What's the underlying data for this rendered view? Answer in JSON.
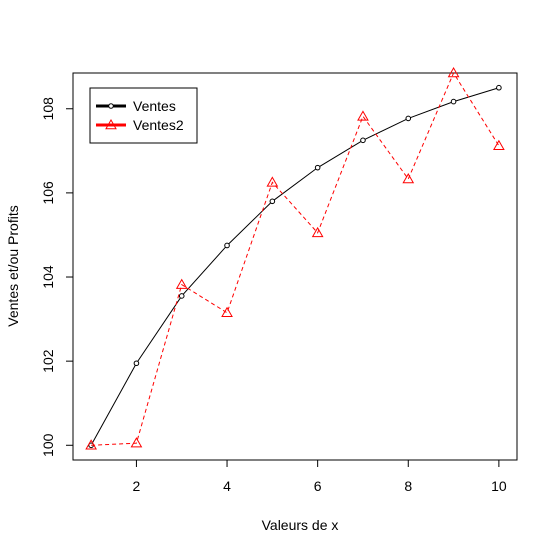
{
  "chart_data": {
    "type": "line",
    "title": "",
    "xlabel": "Valeurs de x",
    "ylabel": "Ventes et/ou Profits",
    "xlim": [
      0.6,
      10.4
    ],
    "ylim": [
      99.65,
      108.85
    ],
    "x_ticks": [
      2,
      4,
      6,
      8,
      10
    ],
    "y_ticks": [
      100,
      102,
      104,
      106,
      108
    ],
    "x_tick_labels": [
      "2",
      "4",
      "6",
      "8",
      "10"
    ],
    "y_tick_labels": [
      "100",
      "102",
      "104",
      "106",
      "108"
    ],
    "grid": false,
    "legend_position": "top-left",
    "x": [
      1,
      2,
      3,
      4,
      5,
      6,
      7,
      8,
      9,
      10
    ],
    "series": [
      {
        "name": "Ventes",
        "color": "#000000",
        "line_style": "solid",
        "marker": "circle",
        "values": [
          100.0,
          101.95,
          103.55,
          104.75,
          105.8,
          106.6,
          107.25,
          107.77,
          108.17,
          108.5
        ]
      },
      {
        "name": "Ventes2",
        "color": "#ff0000",
        "line_style": "dashed",
        "marker": "triangle",
        "values": [
          100.0,
          100.05,
          103.82,
          103.15,
          106.25,
          105.05,
          107.82,
          106.33,
          108.85,
          107.12
        ]
      }
    ]
  }
}
